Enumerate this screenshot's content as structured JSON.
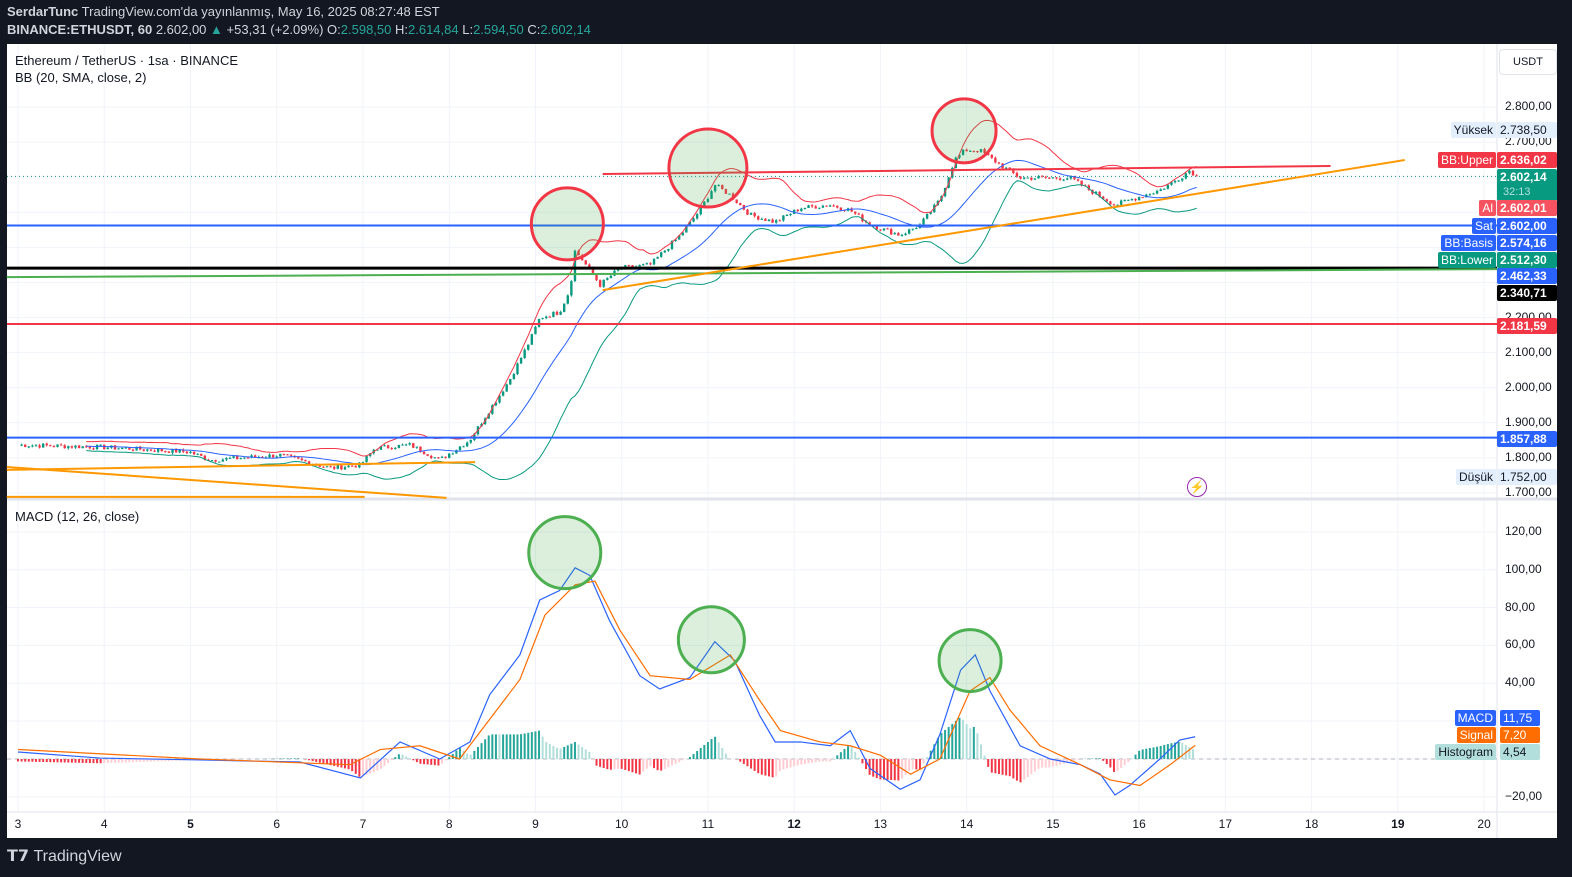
{
  "header": {
    "publisher": "SerdarTunc",
    "published_text": "TradingView.com'da yayınlanmış, May 16, 2025 08:27:48 EST",
    "symbol": "BINANCE:ETHUSDT, 60",
    "last": "2.602,00",
    "change": "+53,31 (+2.09%)",
    "o_label": "O:",
    "o": "2.598,50",
    "h_label": "H:",
    "h": "2.614,84",
    "l_label": "L:",
    "l": "2.594,50",
    "c_label": "C:",
    "c": "2.602,14"
  },
  "pane_price": {
    "title": "Ethereum / TetherUS · 1sa · BINANCE",
    "indicator": "BB (20, SMA, close, 2)",
    "currency": "USDT",
    "ticks": [
      "2.800,00",
      "2.700,00",
      "2.200,00",
      "2.100,00",
      "2.000,00",
      "1.900,00",
      "1.800,00",
      "1.700,00"
    ],
    "badges": [
      {
        "label": "Yüksek",
        "value": "2.738,50",
        "color": "#e3effd"
      },
      {
        "label": "BB:Upper",
        "value": "2.636,02",
        "color": "#f23645"
      },
      {
        "label": "",
        "value": "2.602,14",
        "sub": "32:13",
        "color": "#089981"
      },
      {
        "label": "Al",
        "value": "2.602,01",
        "color": "#f7525f"
      },
      {
        "label": "Sat",
        "value": "2.602,00",
        "color": "#2962ff"
      },
      {
        "label": "BB:Basis",
        "value": "2.574,16",
        "color": "#2962ff"
      },
      {
        "label": "BB:Lower",
        "value": "2.512,30",
        "color": "#089981"
      },
      {
        "label": "",
        "value": "2.462,33",
        "color": "#2962ff"
      },
      {
        "label": "",
        "value": "2.340,71",
        "color": "#000000"
      },
      {
        "label": "",
        "value": "2.181,59",
        "color": "#f23645"
      },
      {
        "label": "",
        "value": "1.857,88",
        "color": "#2962ff"
      },
      {
        "label": "Düşük",
        "value": "1.752,00",
        "color": "#e3effd"
      }
    ]
  },
  "pane_macd": {
    "title": "MACD (12, 26, close)",
    "ticks": [
      "120,00",
      "100,00",
      "80,00",
      "60,00",
      "40,00",
      "−20,00"
    ],
    "badges": [
      {
        "label": "MACD",
        "value": "11,75",
        "color": "#2962ff"
      },
      {
        "label": "Signal",
        "value": "7,20",
        "color": "#ff6d00"
      },
      {
        "label": "Histogram",
        "value": "4,54",
        "color": "#b2dfdb"
      }
    ]
  },
  "x_axis": {
    "ticks": [
      "3",
      "4",
      "5",
      "6",
      "7",
      "8",
      "9",
      "10",
      "11",
      "12",
      "13",
      "14",
      "15",
      "16",
      "17",
      "18",
      "19",
      "20"
    ],
    "bold": [
      "5",
      "12",
      "19"
    ]
  },
  "footer": {
    "brand": "TradingView"
  },
  "chart_data": [
    {
      "type": "candlestick",
      "title": "Ethereum / TetherUS · 1sa · BINANCE",
      "xlabel": "",
      "ylabel": "USDT",
      "xlim": [
        3,
        20.2
      ],
      "ylim": [
        1700,
        2800
      ],
      "x": [
        3.0,
        3.95,
        4.99,
        5.23,
        6.04,
        6.62,
        6.97,
        7.14,
        7.55,
        7.89,
        8.24,
        8.47,
        8.7,
        8.94,
        9.05,
        9.28,
        9.4,
        9.46,
        9.63,
        9.75,
        9.98,
        10.33,
        10.68,
        10.91,
        11.08,
        11.26,
        11.49,
        11.78,
        12.07,
        12.42,
        12.65,
        12.88,
        13.23,
        13.46,
        13.69,
        13.86,
        13.98,
        14.15,
        14.39,
        14.62,
        14.97,
        15.2,
        15.43,
        15.72,
        15.89,
        16.24,
        16.47,
        16.59,
        16.67
      ],
      "close": [
        1837,
        1831,
        1817,
        1794,
        1808,
        1771,
        1780,
        1828,
        1837,
        1794,
        1851,
        1937,
        2022,
        2136,
        2199,
        2216,
        2279,
        2392,
        2335,
        2293,
        2341,
        2350,
        2435,
        2506,
        2578,
        2549,
        2492,
        2472,
        2512,
        2521,
        2506,
        2464,
        2435,
        2464,
        2535,
        2649,
        2677,
        2677,
        2635,
        2598,
        2598,
        2598,
        2563,
        2521,
        2535,
        2563,
        2598,
        2620,
        2602
      ],
      "colors": {
        "up": "#089981",
        "down": "#f23645",
        "bb_upper": "#f23645",
        "bb_basis": "#2962ff",
        "bb_lower": "#089981"
      },
      "grid": true,
      "drawings": {
        "hlines": [
          {
            "price": 2462.33,
            "color": "#2962ff"
          },
          {
            "price": 2340.71,
            "color": "#000000"
          },
          {
            "price": 2181.59,
            "color": "#f23645"
          },
          {
            "price": 1857.88,
            "color": "#2962ff"
          }
        ],
        "segments": [
          {
            "from": [
              2.87,
              2315
            ],
            "to": [
              20.2,
              2338
            ],
            "color": "#4caf50"
          },
          {
            "from": [
              9.78,
              2609
            ],
            "to": [
              18.22,
              2632
            ],
            "color": "#f23645"
          },
          {
            "from": [
              9.78,
              2278
            ],
            "to": [
              19.08,
              2649
            ],
            "color": "#ff9800"
          },
          {
            "from": [
              2.87,
              1766
            ],
            "to": [
              8.3,
              1788
            ],
            "color": "#ff9800"
          },
          {
            "from": [
              2.87,
              1774
            ],
            "to": [
              7.97,
              1686
            ],
            "color": "#ff9800"
          },
          {
            "from": [
              2.87,
              1689
            ],
            "to": [
              7.02,
              1689
            ],
            "color": "#ff9800"
          }
        ],
        "circles": [
          {
            "at": [
              9.37,
              2467
            ],
            "color": "#f23645"
          },
          {
            "at": [
              11.0,
              2626
            ],
            "color": "#f23645"
          },
          {
            "at": [
              13.97,
              2732
            ],
            "color": "#f23645"
          }
        ],
        "last_price": 2602.14
      }
    },
    {
      "type": "line",
      "title": "MACD (12, 26, close)",
      "ylim": [
        -25,
        130
      ],
      "series": [
        {
          "name": "MACD",
          "color": "#2962ff",
          "x": [
            3.0,
            3.95,
            5.11,
            6.27,
            6.97,
            7.43,
            7.89,
            8.24,
            8.47,
            8.82,
            9.05,
            9.28,
            9.46,
            9.63,
            9.86,
            10.21,
            10.44,
            10.79,
            11.08,
            11.31,
            11.6,
            11.78,
            12.07,
            12.42,
            12.65,
            12.88,
            13.23,
            13.46,
            13.69,
            13.93,
            14.1,
            14.27,
            14.62,
            14.97,
            15.32,
            15.55,
            15.72,
            15.89,
            16.24,
            16.47,
            16.65
          ],
          "values": [
            3.7,
            0.5,
            -0.5,
            -1.6,
            -10,
            9,
            0,
            9,
            34,
            55,
            84,
            89,
            101,
            97,
            73,
            44,
            37,
            43,
            62,
            52,
            23,
            9,
            9,
            7,
            15,
            -5,
            -16,
            -11,
            13,
            47,
            55,
            36,
            7,
            0,
            -3,
            -8,
            -19,
            -14,
            0,
            10,
            11.75
          ]
        },
        {
          "name": "Signal",
          "color": "#ff6d00",
          "x": [
            3.0,
            5.11,
            6.85,
            7.2,
            7.66,
            8.12,
            8.47,
            8.82,
            9.11,
            9.46,
            9.69,
            9.98,
            10.33,
            10.79,
            11.26,
            11.6,
            11.84,
            12.3,
            12.65,
            13.0,
            13.35,
            13.69,
            14.04,
            14.27,
            14.5,
            14.85,
            15.32,
            15.66,
            16.01,
            16.36,
            16.65
          ],
          "values": [
            5,
            0,
            -3,
            5,
            7,
            0,
            21,
            42,
            76,
            92,
            94,
            68,
            44,
            42,
            55,
            31,
            15,
            9,
            7,
            2,
            -8,
            0,
            36,
            43,
            26,
            7,
            -3,
            -11,
            -14,
            -3,
            7.2
          ]
        },
        {
          "name": "Histogram",
          "colors": {
            "pos": "#26a69a",
            "pos_fading": "#b2dfdb",
            "neg": "#f23645",
            "neg_fading": "#ffcdd2"
          }
        }
      ],
      "drawings": {
        "circles": [
          {
            "at": [
              9.34,
              109
            ],
            "color": "#4caf50"
          },
          {
            "at": [
              11.04,
              63
            ],
            "color": "#4caf50"
          },
          {
            "at": [
              14.04,
              52
            ],
            "color": "#4caf50"
          }
        ]
      }
    }
  ]
}
